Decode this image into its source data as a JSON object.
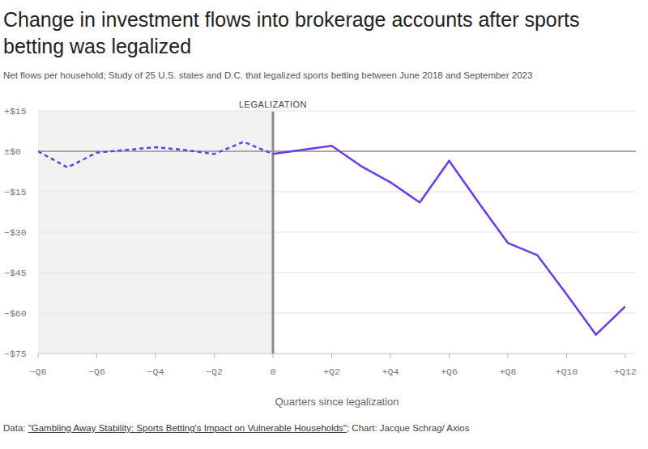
{
  "chart_data": {
    "type": "line",
    "title": "Change in investment flows into brokerage accounts after sports betting was legalized",
    "subtitle": "Net flows per household; Study of 25 U.S. states and D.C. that legalized sports betting between June 2018 and September 2023",
    "x_label": "Quarters since legalization",
    "annotation": {
      "text": "LEGALIZATION",
      "x": 0
    },
    "source": [
      "Data: ",
      "\"Gambling Away Stability: Sports Betting's Impact on Vulnerable Households\"",
      "; Chart: Jacque Schrag/ Axios"
    ],
    "x": [
      -8,
      -7,
      -6,
      -5,
      -4,
      -3,
      -2,
      -1,
      0,
      1,
      2,
      3,
      4,
      5,
      6,
      7,
      8,
      9,
      10,
      11,
      12
    ],
    "series": [
      {
        "color": "#6b3ce4",
        "line_style": "dashed",
        "values": [
          0,
          -6,
          -0.5,
          0.5,
          1.5,
          0.5,
          -1,
          3.5,
          -1,
          null,
          null,
          null,
          null,
          null,
          null,
          null,
          null,
          null,
          null,
          null,
          null
        ]
      },
      {
        "color": "#6b3ce4",
        "line_style": "solid",
        "values": [
          null,
          null,
          null,
          null,
          null,
          null,
          null,
          null,
          -1,
          0.5,
          2,
          -5.5,
          -11.5,
          -19,
          -3.5,
          -19,
          -34,
          -38.5,
          -53,
          -68,
          -57.5
        ]
      }
    ],
    "xlim": [
      -8,
      12
    ],
    "xticks": [
      {
        "value": -8,
        "label": "−Q8"
      },
      {
        "value": -6,
        "label": "−Q6"
      },
      {
        "value": -4,
        "label": "−Q4"
      },
      {
        "value": -2,
        "label": "−Q2"
      },
      0,
      {
        "value": 2,
        "label": "+Q2"
      },
      {
        "value": 4,
        "label": "+Q4"
      },
      {
        "value": 6,
        "label": "+Q6"
      },
      {
        "value": 8,
        "label": "+Q8"
      },
      {
        "value": 10,
        "label": "+Q10"
      },
      {
        "value": 12,
        "label": "+Q12"
      }
    ],
    "ylim": [
      -75,
      15
    ],
    "yticks": [
      {
        "value": 15,
        "label": "+$15"
      },
      {
        "value": 0,
        "label": "±$0"
      },
      {
        "value": -15,
        "label": "−$15"
      },
      {
        "value": -30,
        "label": "−$30"
      },
      {
        "value": -45,
        "label": "−$45"
      },
      {
        "value": -60,
        "label": "−$60"
      },
      {
        "value": -75,
        "label": "−$75"
      }
    ],
    "grid": true
  }
}
